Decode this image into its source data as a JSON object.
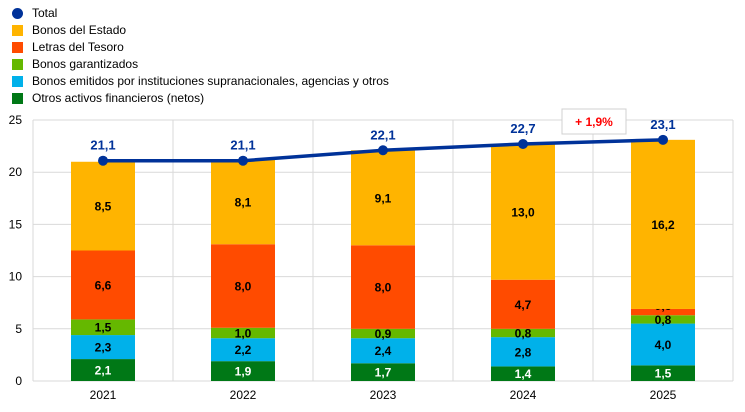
{
  "chart_data": {
    "type": "bar",
    "stacked": true,
    "categories": [
      "2021",
      "2022",
      "2023",
      "2024",
      "2025"
    ],
    "ylim": [
      0,
      25
    ],
    "yticks": [
      0,
      5,
      10,
      15,
      20,
      25
    ],
    "grid": true,
    "legend_position": "top-left",
    "series": [
      {
        "name": "Otros activos financieros (netos)",
        "color": "#007816",
        "label_color": "#ffffff",
        "values": [
          2.1,
          1.9,
          1.7,
          1.4,
          1.5
        ],
        "labels": [
          "2,1",
          "1,9",
          "1,7",
          "1,4",
          "1,5"
        ]
      },
      {
        "name": "Bonos emitidos por instituciones supranacionales, agencias y otros",
        "color": "#00B1EA",
        "label_color": "#000000",
        "values": [
          2.3,
          2.2,
          2.4,
          2.8,
          4.0
        ],
        "labels": [
          "2,3",
          "2,2",
          "2,4",
          "2,8",
          "4,0"
        ]
      },
      {
        "name": "Bonos garantizados",
        "color": "#65B800",
        "label_color": "#000000",
        "values": [
          1.5,
          1.0,
          0.9,
          0.8,
          0.8
        ],
        "labels": [
          "1,5",
          "1,0",
          "0,9",
          "0,8",
          "0,8"
        ]
      },
      {
        "name": "Letras del Tesoro",
        "color": "#FF4B00",
        "label_color": "#000000",
        "values": [
          6.6,
          8.0,
          8.0,
          4.7,
          0.6
        ],
        "labels": [
          "6,6",
          "8,0",
          "8,0",
          "4,7",
          "0,6"
        ]
      },
      {
        "name": "Bonos del Estado",
        "color": "#FFB400",
        "label_color": "#000000",
        "values": [
          8.5,
          8.1,
          9.1,
          13.0,
          16.2
        ],
        "labels": [
          "8,5",
          "8,1",
          "9,1",
          "13,0",
          "16,2"
        ]
      }
    ],
    "total": {
      "name": "Total",
      "type": "line",
      "color": "#003299",
      "values": [
        21.1,
        21.1,
        22.1,
        22.7,
        23.1
      ],
      "labels": [
        "21,1",
        "21,1",
        "22,1",
        "22,7",
        "23,1"
      ]
    },
    "annotation": {
      "text": "+ 1,9%",
      "color": "#FF0000"
    }
  }
}
